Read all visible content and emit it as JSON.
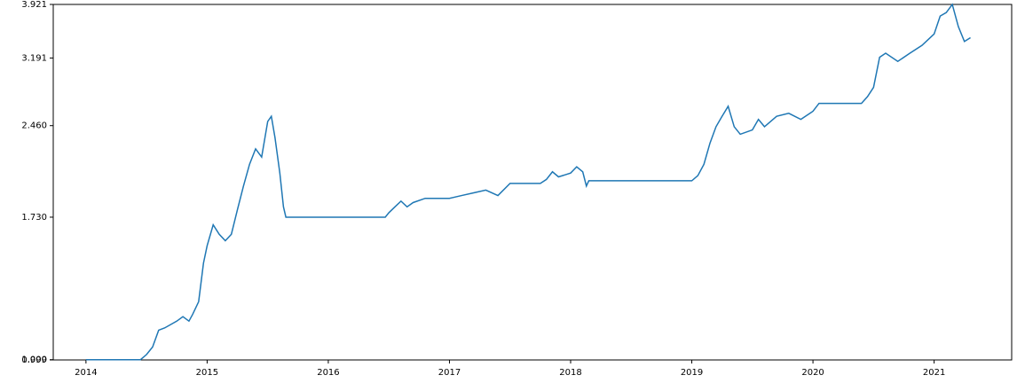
{
  "chart_data": {
    "type": "line",
    "log_y": true,
    "color": "#1f77b4",
    "xlim": [
      2013.73,
      2021.64
    ],
    "xticks": [
      2014,
      2015,
      2016,
      2017,
      2018,
      2019,
      2020,
      2021
    ],
    "ylim": [
      0.999,
      3.921
    ],
    "yticks": [
      0.999,
      {
        "value": 1,
        "label": "1.000"
      },
      {
        "value": 1.73,
        "label": "1.730"
      },
      {
        "value": 2.46,
        "label": "2.460"
      },
      3.191,
      3.921
    ],
    "x": [
      2014.0,
      2014.45,
      2014.5,
      2014.55,
      2014.6,
      2014.65,
      2014.75,
      2014.8,
      2014.85,
      2014.88,
      2014.93,
      2014.97,
      2015.0,
      2015.05,
      2015.1,
      2015.15,
      2015.2,
      2015.25,
      2015.3,
      2015.35,
      2015.4,
      2015.45,
      2015.5,
      2015.53,
      2015.56,
      2015.6,
      2015.63,
      2015.65,
      2016.47,
      2016.5,
      2016.55,
      2016.6,
      2016.65,
      2016.7,
      2016.8,
      2016.9,
      2017.0,
      2017.1,
      2017.2,
      2017.3,
      2017.4,
      2017.5,
      2017.75,
      2017.8,
      2017.85,
      2017.9,
      2018.0,
      2018.05,
      2018.1,
      2018.13,
      2018.15,
      2019.0,
      2019.05,
      2019.1,
      2019.15,
      2019.2,
      2019.25,
      2019.3,
      2019.35,
      2019.4,
      2019.5,
      2019.55,
      2019.6,
      2019.7,
      2019.8,
      2019.9,
      2020.0,
      2020.05,
      2020.4,
      2020.45,
      2020.5,
      2020.55,
      2020.6,
      2020.7,
      2020.8,
      2020.9,
      2021.0,
      2021.05,
      2021.1,
      2021.15,
      2021.2,
      2021.25,
      2021.3
    ],
    "values": [
      1.0,
      1.0,
      1.02,
      1.05,
      1.12,
      1.13,
      1.16,
      1.18,
      1.16,
      1.19,
      1.25,
      1.45,
      1.55,
      1.68,
      1.62,
      1.58,
      1.62,
      1.78,
      1.95,
      2.12,
      2.25,
      2.18,
      2.5,
      2.55,
      2.35,
      2.05,
      1.8,
      1.73,
      1.73,
      1.76,
      1.8,
      1.84,
      1.8,
      1.83,
      1.86,
      1.86,
      1.86,
      1.88,
      1.9,
      1.92,
      1.88,
      1.97,
      1.97,
      2.0,
      2.06,
      2.02,
      2.05,
      2.1,
      2.06,
      1.95,
      1.99,
      1.99,
      2.03,
      2.12,
      2.3,
      2.45,
      2.55,
      2.65,
      2.45,
      2.38,
      2.42,
      2.52,
      2.45,
      2.55,
      2.58,
      2.52,
      2.6,
      2.68,
      2.68,
      2.75,
      2.85,
      3.2,
      3.25,
      3.15,
      3.25,
      3.35,
      3.5,
      3.75,
      3.8,
      3.92,
      3.6,
      3.4,
      3.45
    ]
  }
}
